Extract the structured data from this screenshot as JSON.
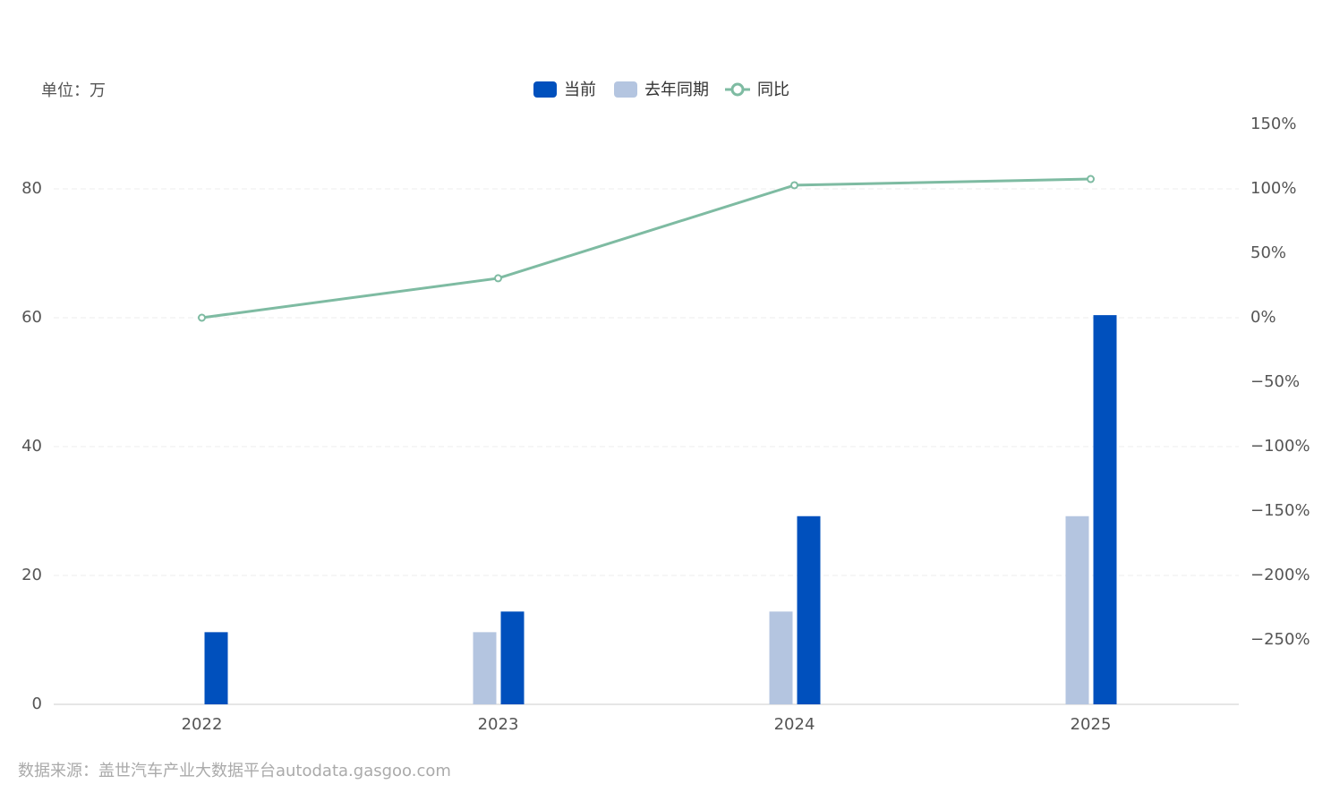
{
  "chart_data": {
    "type": "bar-line",
    "unit_label": "单位：万",
    "source": "数据来源：盖世汽车产业大数据平台autodata.gasgoo.com",
    "categories": [
      "2022",
      "2023",
      "2024",
      "2025"
    ],
    "series": [
      {
        "name": "当前",
        "type": "bar",
        "color": "#0050bd",
        "values": [
          11.2,
          14.4,
          29.2,
          60.4
        ]
      },
      {
        "name": "去年同期",
        "type": "bar",
        "color": "#b4c5e0",
        "values": [
          null,
          11.2,
          14.4,
          29.2
        ]
      },
      {
        "name": "同比",
        "type": "line",
        "axis": "y2",
        "color": "#7ebba2",
        "values": [
          0,
          30.6,
          102.8,
          107.6
        ]
      }
    ],
    "ylim": [
      0,
      90
    ],
    "yticks": [
      0,
      20,
      40,
      60,
      80
    ],
    "y2lim": [
      -300,
      150
    ],
    "y2ticks": [
      {
        "value": 150,
        "label": "150%"
      },
      {
        "value": 100,
        "label": "100%"
      },
      {
        "value": 50,
        "label": "50%"
      },
      {
        "value": 0,
        "label": "0%"
      },
      {
        "value": -50,
        "label": "−50%"
      },
      {
        "value": -100,
        "label": "−100%"
      },
      {
        "value": -150,
        "label": "−150%"
      },
      {
        "value": -200,
        "label": "−200%"
      },
      {
        "value": -250,
        "label": "−250%"
      }
    ],
    "grid": true
  }
}
